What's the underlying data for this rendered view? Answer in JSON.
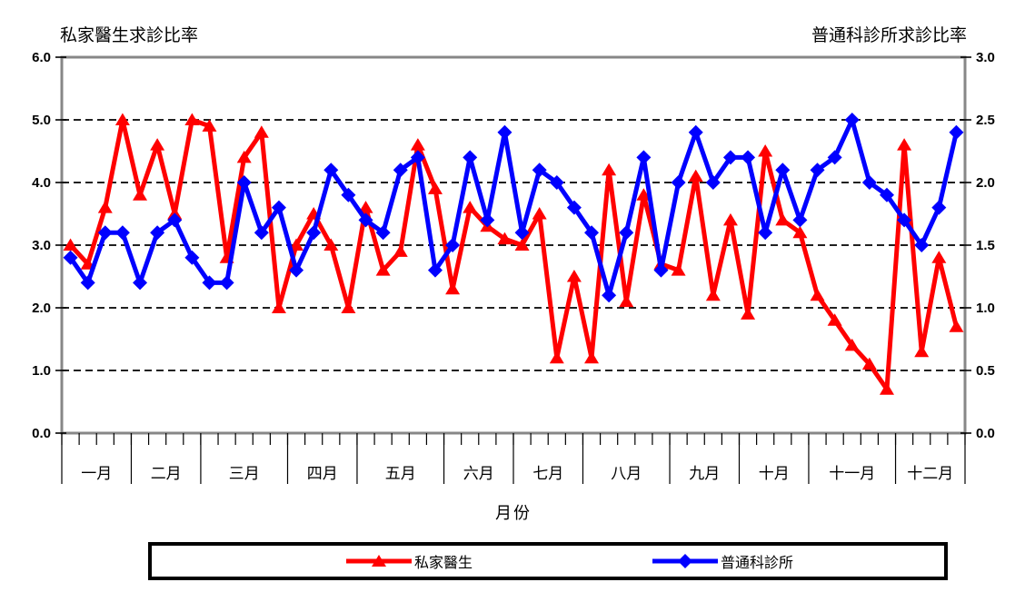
{
  "header": {
    "left_axis_title": "私家醫生求診比率",
    "right_axis_title": "普通科診所求診比率"
  },
  "xlabel": "月份",
  "colors": {
    "red_series": "#ff0000",
    "blue_series": "#0000ff",
    "frame": "#878787",
    "grid": "#000000",
    "background": "#ffffff"
  },
  "chart_data": {
    "type": "line",
    "x_unit": "week",
    "grid": "horizontal-dashed",
    "legend_position": "bottom-box",
    "months": [
      "一月",
      "二月",
      "三月",
      "四月",
      "五月",
      "六月",
      "七月",
      "八月",
      "九月",
      "十月",
      "十一月",
      "十二月"
    ],
    "weeks_per_month": [
      4,
      4,
      5,
      4,
      5,
      4,
      4,
      5,
      4,
      4,
      5,
      4
    ],
    "left_axis": {
      "title": "私家醫生求診比率",
      "min": 0,
      "max": 6,
      "tick_labels": [
        "6.0",
        "5.0",
        "4.0",
        "3.0",
        "2.0",
        "1.0",
        "0.0"
      ]
    },
    "right_axis": {
      "title": "普通科診所求診比率",
      "min": 0,
      "max": 3,
      "tick_labels": [
        "3.0",
        "2.5",
        "2.0",
        "1.5",
        "1.0",
        "0.5",
        "0.0"
      ]
    },
    "series": [
      {
        "name": "私家醫生",
        "axis": "left",
        "color": "#ff0000",
        "marker": "triangle",
        "values": [
          3.0,
          2.7,
          3.6,
          5.0,
          3.8,
          4.6,
          3.5,
          5.0,
          4.9,
          2.8,
          4.4,
          4.8,
          2.0,
          3.0,
          3.5,
          3.0,
          2.0,
          3.6,
          2.6,
          2.9,
          4.6,
          3.9,
          2.3,
          3.6,
          3.3,
          3.1,
          3.0,
          3.5,
          1.2,
          2.5,
          1.2,
          4.2,
          2.1,
          3.8,
          2.7,
          2.6,
          4.1,
          2.2,
          3.4,
          1.9,
          4.5,
          3.4,
          3.2,
          2.2,
          1.8,
          1.4,
          1.1,
          0.7,
          4.6,
          1.3,
          2.8,
          1.7
        ]
      },
      {
        "name": "普通科診所",
        "axis": "right",
        "color": "#0000ff",
        "marker": "diamond",
        "values": [
          1.4,
          1.2,
          1.6,
          1.6,
          1.2,
          1.6,
          1.7,
          1.4,
          1.2,
          1.2,
          2.0,
          1.6,
          1.8,
          1.3,
          1.6,
          2.1,
          1.9,
          1.7,
          1.6,
          2.1,
          2.2,
          1.3,
          1.5,
          2.2,
          1.7,
          2.4,
          1.6,
          2.1,
          2.0,
          1.8,
          1.6,
          1.1,
          1.6,
          2.2,
          1.3,
          2.0,
          2.4,
          2.0,
          2.2,
          2.2,
          1.6,
          2.1,
          1.7,
          2.1,
          2.2,
          2.5,
          2.0,
          1.9,
          1.7,
          1.5,
          1.8,
          2.4
        ]
      }
    ]
  }
}
